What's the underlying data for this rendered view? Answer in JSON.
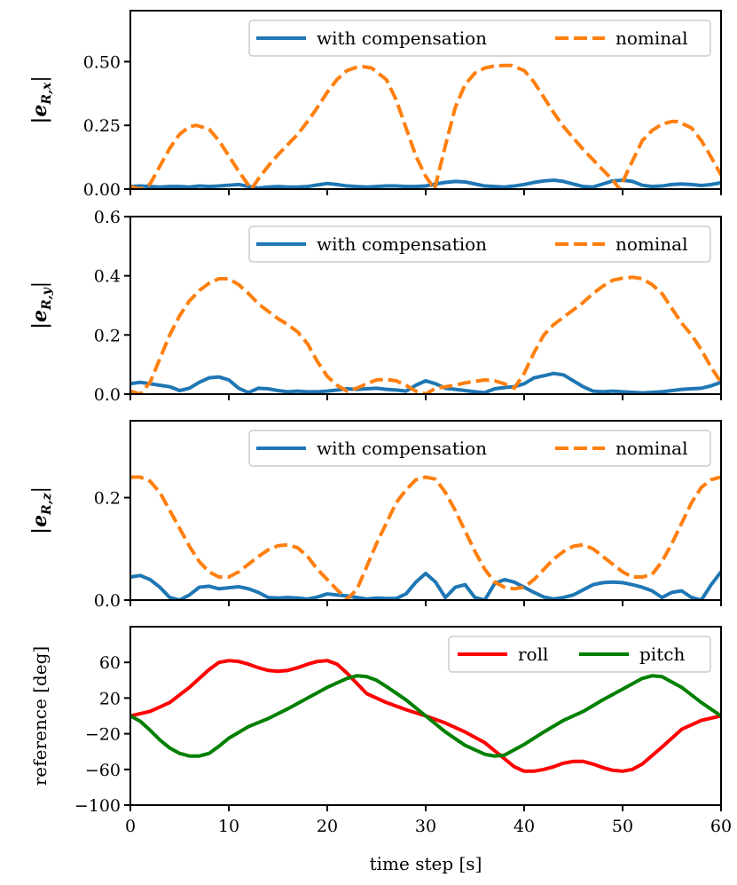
{
  "chart_data": [
    {
      "type": "line",
      "ylabel": "|e_{R,x}|",
      "ylabel_base": "|e",
      "ylabel_sub": "R,x",
      "xlim": [
        0,
        60
      ],
      "ylim": [
        0,
        0.7
      ],
      "yticks": [
        0.0,
        0.25,
        0.5
      ],
      "ytick_labels": [
        "0.00",
        "0.25",
        "0.50"
      ],
      "xticks": [
        0,
        10,
        20,
        30,
        40,
        50,
        60
      ],
      "show_xtick_labels": false,
      "legend": {
        "placement": "top-right",
        "columns": 2
      },
      "series": [
        {
          "name": "with compensation",
          "color": "#1f77b4",
          "style": "solid",
          "x": [
            0,
            1,
            2,
            3,
            4,
            5,
            6,
            7,
            8,
            9,
            10,
            11,
            12,
            13,
            14,
            15,
            16,
            17,
            18,
            19,
            20,
            21,
            22,
            23,
            24,
            25,
            26,
            27,
            28,
            29,
            30,
            31,
            32,
            33,
            34,
            35,
            36,
            37,
            38,
            39,
            40,
            41,
            42,
            43,
            44,
            45,
            46,
            47,
            48,
            49,
            50,
            51,
            52,
            53,
            54,
            55,
            56,
            57,
            58,
            59,
            60
          ],
          "y": [
            0.01,
            0.012,
            0.01,
            0.008,
            0.01,
            0.01,
            0.008,
            0.012,
            0.01,
            0.012,
            0.015,
            0.018,
            0.01,
            0.004,
            0.008,
            0.01,
            0.008,
            0.008,
            0.01,
            0.016,
            0.022,
            0.018,
            0.012,
            0.01,
            0.008,
            0.01,
            0.012,
            0.012,
            0.01,
            0.01,
            0.012,
            0.02,
            0.026,
            0.03,
            0.028,
            0.02,
            0.012,
            0.01,
            0.008,
            0.012,
            0.018,
            0.026,
            0.032,
            0.035,
            0.03,
            0.02,
            0.01,
            0.008,
            0.02,
            0.032,
            0.035,
            0.03,
            0.015,
            0.01,
            0.012,
            0.018,
            0.02,
            0.018,
            0.014,
            0.018,
            0.025
          ]
        },
        {
          "name": "nominal",
          "color": "#ff7f0e",
          "style": "dashed",
          "x": [
            0,
            1,
            2,
            3,
            4,
            5,
            6,
            6.7,
            8,
            9,
            10,
            11,
            12,
            12.3,
            13,
            14,
            15,
            16,
            17,
            18,
            19,
            20,
            21,
            22,
            23,
            23.7,
            24.5,
            26,
            27,
            28,
            29,
            30,
            30.9,
            32,
            33,
            34,
            35,
            36,
            37,
            38,
            38.7,
            40,
            41,
            42,
            43,
            44,
            45,
            46,
            47,
            48,
            49,
            49.7,
            50.5,
            52,
            53,
            54,
            55,
            55.6,
            57,
            58,
            59,
            60
          ],
          "y": [
            0.01,
            0.0,
            0.02,
            0.09,
            0.16,
            0.215,
            0.245,
            0.25,
            0.235,
            0.19,
            0.13,
            0.07,
            0.015,
            0.0,
            0.04,
            0.09,
            0.135,
            0.175,
            0.215,
            0.265,
            0.32,
            0.38,
            0.43,
            0.465,
            0.478,
            0.48,
            0.475,
            0.43,
            0.35,
            0.24,
            0.13,
            0.05,
            0.0,
            0.17,
            0.32,
            0.41,
            0.455,
            0.475,
            0.483,
            0.485,
            0.485,
            0.465,
            0.42,
            0.36,
            0.3,
            0.245,
            0.2,
            0.155,
            0.115,
            0.075,
            0.035,
            0.0,
            0.07,
            0.19,
            0.23,
            0.255,
            0.265,
            0.265,
            0.24,
            0.19,
            0.125,
            0.055
          ]
        }
      ]
    },
    {
      "type": "line",
      "ylabel": "|e_{R,y}|",
      "ylabel_base": "|e",
      "ylabel_sub": "R,y",
      "xlim": [
        0,
        60
      ],
      "ylim": [
        0,
        0.6
      ],
      "yticks": [
        0.0,
        0.2,
        0.4,
        0.6
      ],
      "ytick_labels": [
        "0.0",
        "0.2",
        "0.4",
        "0.6"
      ],
      "xticks": [
        0,
        10,
        20,
        30,
        40,
        50,
        60
      ],
      "show_xtick_labels": false,
      "legend": {
        "placement": "top-right",
        "columns": 2
      },
      "series": [
        {
          "name": "with compensation",
          "color": "#1f77b4",
          "style": "solid",
          "x": [
            0,
            1,
            2,
            3,
            4,
            5,
            6,
            7,
            8,
            9,
            10,
            11,
            12,
            13,
            14,
            15,
            16,
            17,
            18,
            19,
            20,
            21,
            22,
            23,
            24,
            25,
            26,
            27,
            28,
            29,
            30,
            31,
            32,
            33,
            34,
            35,
            36,
            37,
            38,
            39,
            40,
            41,
            42,
            43,
            44,
            45,
            46,
            47,
            48,
            49,
            50,
            51,
            52,
            53,
            54,
            55,
            56,
            57,
            58,
            59,
            60
          ],
          "y": [
            0.035,
            0.04,
            0.035,
            0.03,
            0.025,
            0.012,
            0.02,
            0.04,
            0.055,
            0.058,
            0.048,
            0.02,
            0.005,
            0.02,
            0.018,
            0.012,
            0.008,
            0.01,
            0.008,
            0.008,
            0.01,
            0.014,
            0.018,
            0.016,
            0.018,
            0.02,
            0.016,
            0.014,
            0.01,
            0.03,
            0.045,
            0.035,
            0.02,
            0.016,
            0.012,
            0.008,
            0.005,
            0.018,
            0.022,
            0.025,
            0.035,
            0.055,
            0.062,
            0.07,
            0.065,
            0.045,
            0.025,
            0.01,
            0.008,
            0.01,
            0.008,
            0.006,
            0.004,
            0.006,
            0.008,
            0.012,
            0.016,
            0.018,
            0.02,
            0.028,
            0.04
          ]
        },
        {
          "name": "nominal",
          "color": "#ff7f0e",
          "style": "dashed",
          "x": [
            0,
            1,
            2,
            3,
            4,
            5,
            6,
            7,
            8,
            9,
            10,
            11,
            12,
            13,
            14,
            15,
            16,
            17,
            18,
            19,
            20,
            21,
            22,
            23,
            24,
            25,
            26,
            27,
            28,
            29,
            30,
            31,
            32,
            33,
            34,
            35,
            36,
            37,
            38,
            39,
            40,
            41,
            42,
            43,
            44,
            45,
            46,
            47,
            48,
            49,
            50,
            51,
            52,
            53,
            54,
            55,
            56,
            57,
            58,
            59,
            60
          ],
          "y": [
            0.01,
            0.0,
            0.04,
            0.12,
            0.2,
            0.265,
            0.315,
            0.35,
            0.375,
            0.39,
            0.39,
            0.37,
            0.34,
            0.305,
            0.28,
            0.255,
            0.235,
            0.21,
            0.17,
            0.11,
            0.06,
            0.03,
            0.01,
            0.02,
            0.035,
            0.048,
            0.05,
            0.045,
            0.03,
            0.01,
            0.0,
            0.02,
            0.025,
            0.03,
            0.038,
            0.043,
            0.048,
            0.045,
            0.035,
            0.02,
            0.07,
            0.14,
            0.2,
            0.235,
            0.26,
            0.285,
            0.31,
            0.34,
            0.365,
            0.385,
            0.392,
            0.395,
            0.39,
            0.37,
            0.34,
            0.29,
            0.24,
            0.2,
            0.15,
            0.09,
            0.04
          ]
        }
      ]
    },
    {
      "type": "line",
      "ylabel": "|e_{R,z}|",
      "ylabel_base": "|e",
      "ylabel_sub": "R,z",
      "xlim": [
        0,
        60
      ],
      "ylim": [
        0,
        0.35
      ],
      "yticks": [
        0.0,
        0.2
      ],
      "ytick_labels": [
        "0.0",
        "0.2"
      ],
      "xticks": [
        0,
        10,
        20,
        30,
        40,
        50,
        60
      ],
      "show_xtick_labels": false,
      "legend": {
        "placement": "top-right",
        "columns": 2
      },
      "series": [
        {
          "name": "with compensation",
          "color": "#1f77b4",
          "style": "solid",
          "x": [
            0,
            1,
            2,
            3,
            4,
            5,
            6,
            7,
            8,
            9,
            10,
            11,
            12,
            13,
            14,
            15,
            16,
            17,
            18,
            19,
            20,
            21,
            22,
            23,
            24,
            25,
            26,
            27,
            28,
            29,
            30,
            31,
            32,
            33,
            34,
            35,
            36,
            37,
            38,
            39,
            40,
            41,
            42,
            43,
            44,
            45,
            46,
            47,
            48,
            49,
            50,
            51,
            52,
            53,
            54,
            55,
            56,
            57,
            58,
            59,
            60
          ],
          "y": [
            0.045,
            0.048,
            0.04,
            0.025,
            0.005,
            0.0,
            0.01,
            0.025,
            0.027,
            0.022,
            0.024,
            0.026,
            0.022,
            0.015,
            0.005,
            0.004,
            0.005,
            0.004,
            0.002,
            0.006,
            0.012,
            0.01,
            0.008,
            0.005,
            0.002,
            0.004,
            0.003,
            0.003,
            0.012,
            0.035,
            0.052,
            0.035,
            0.005,
            0.025,
            0.03,
            0.005,
            0.0,
            0.032,
            0.04,
            0.035,
            0.025,
            0.015,
            0.006,
            0.002,
            0.005,
            0.01,
            0.02,
            0.03,
            0.034,
            0.035,
            0.034,
            0.03,
            0.025,
            0.018,
            0.005,
            0.015,
            0.018,
            0.005,
            0.0,
            0.03,
            0.055
          ]
        },
        {
          "name": "nominal",
          "color": "#ff7f0e",
          "style": "dashed",
          "x": [
            0,
            1,
            2,
            3,
            4,
            5,
            6,
            7,
            8,
            9,
            10,
            11,
            12,
            13,
            14,
            15,
            16,
            17,
            18,
            19,
            20,
            21,
            22,
            23,
            24,
            25,
            26,
            27,
            28,
            29,
            30,
            31,
            32,
            33,
            34,
            35,
            36,
            37,
            38,
            39,
            40,
            41,
            42,
            43,
            44,
            45,
            46,
            47,
            48,
            49,
            50,
            51,
            52,
            53,
            54,
            55,
            56,
            57,
            58,
            59,
            60
          ],
          "y": [
            0.24,
            0.24,
            0.232,
            0.21,
            0.175,
            0.14,
            0.105,
            0.075,
            0.055,
            0.045,
            0.045,
            0.055,
            0.07,
            0.085,
            0.098,
            0.106,
            0.108,
            0.102,
            0.085,
            0.06,
            0.04,
            0.02,
            0.002,
            0.02,
            0.065,
            0.11,
            0.15,
            0.19,
            0.215,
            0.235,
            0.24,
            0.236,
            0.21,
            0.175,
            0.135,
            0.095,
            0.06,
            0.035,
            0.025,
            0.022,
            0.025,
            0.04,
            0.06,
            0.08,
            0.095,
            0.105,
            0.108,
            0.1,
            0.085,
            0.07,
            0.055,
            0.045,
            0.045,
            0.05,
            0.075,
            0.11,
            0.15,
            0.19,
            0.22,
            0.235,
            0.24
          ]
        }
      ]
    },
    {
      "type": "line",
      "xlabel": "time step [s]",
      "ylabel": "reference [deg]",
      "xlim": [
        0,
        60
      ],
      "ylim": [
        -100,
        100
      ],
      "yticks": [
        -100,
        -60,
        -20,
        20,
        60
      ],
      "ytick_labels": [
        "−100",
        "−60",
        "−20",
        "20",
        "60"
      ],
      "xticks": [
        0,
        10,
        20,
        30,
        40,
        50,
        60
      ],
      "xtick_labels": [
        "0",
        "10",
        "20",
        "30",
        "40",
        "50",
        "60"
      ],
      "show_xtick_labels": true,
      "legend": {
        "placement": "top-right",
        "columns": 2
      },
      "series": [
        {
          "name": "roll",
          "color": "#ff0000",
          "style": "solid",
          "x": [
            0,
            2,
            4,
            6,
            8,
            9,
            10,
            11,
            12,
            13,
            14,
            15,
            16,
            17,
            18,
            19,
            20,
            21,
            22,
            24,
            26,
            28,
            30,
            32,
            34,
            36,
            38,
            39,
            40,
            41,
            42,
            43,
            44,
            45,
            46,
            47,
            48,
            49,
            50,
            51,
            52,
            54,
            56,
            58,
            60
          ],
          "y": [
            0,
            5,
            15,
            32,
            52,
            60,
            62,
            61,
            58,
            54,
            51,
            50,
            51,
            54,
            58,
            61,
            62,
            58,
            48,
            25,
            15,
            7,
            0,
            -8,
            -18,
            -30,
            -48,
            -57,
            -62,
            -62,
            -60,
            -57,
            -53,
            -51,
            -51,
            -54,
            -58,
            -61,
            -62,
            -60,
            -54,
            -35,
            -15,
            -5,
            0
          ]
        },
        {
          "name": "pitch",
          "color": "#008000",
          "style": "solid",
          "x": [
            0,
            1,
            2,
            3,
            4,
            5,
            6,
            7,
            8,
            9,
            10,
            12,
            14,
            16,
            18,
            20,
            22,
            23,
            24,
            25,
            26,
            28,
            30,
            32,
            34,
            36,
            37,
            38,
            40,
            42,
            44,
            46,
            48,
            50,
            52,
            53,
            54,
            56,
            58,
            60
          ],
          "y": [
            0,
            -6,
            -16,
            -27,
            -36,
            -42,
            -45,
            -45,
            -42,
            -34,
            -25,
            -12,
            -3,
            8,
            20,
            32,
            42,
            45,
            44,
            40,
            33,
            18,
            0,
            -18,
            -33,
            -43,
            -45,
            -44,
            -32,
            -18,
            -5,
            5,
            18,
            30,
            42,
            45,
            44,
            32,
            15,
            0
          ]
        }
      ]
    }
  ]
}
